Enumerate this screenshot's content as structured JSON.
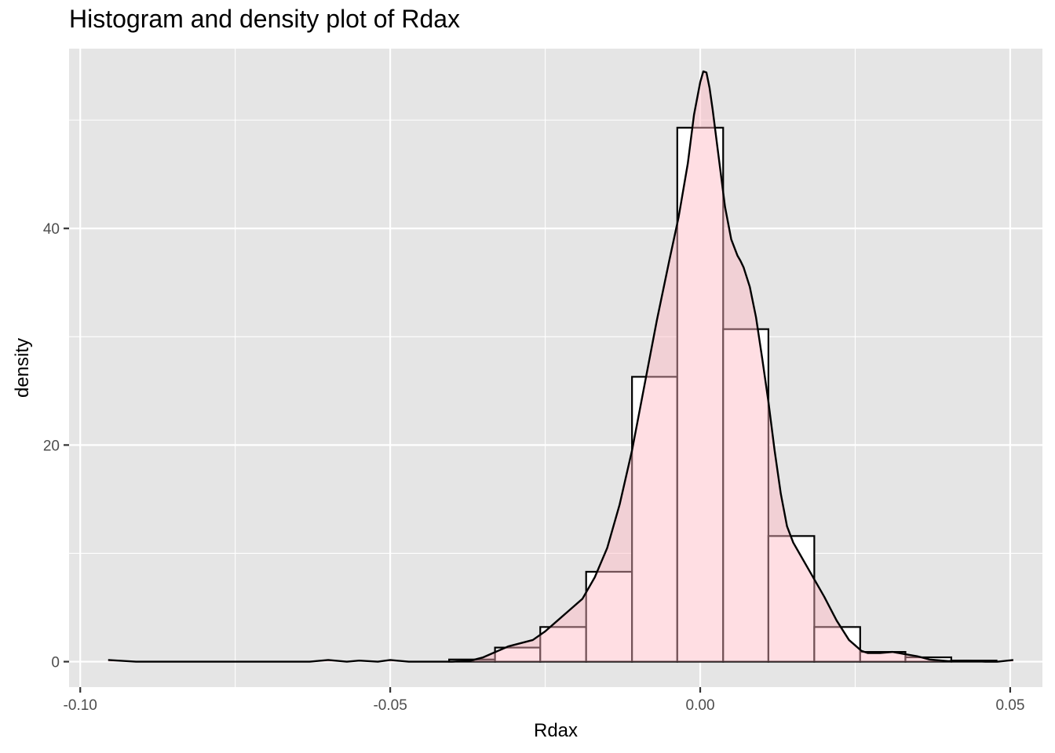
{
  "chart_data": {
    "type": "histogram",
    "title": "Histogram and density plot of Rdax",
    "xlabel": "Rdax",
    "ylabel": "density",
    "xlim": [
      -0.1018,
      0.0552
    ],
    "ylim": [
      -2.35,
      56.6
    ],
    "x_ticks": [
      -0.1,
      -0.05,
      0.0,
      0.05
    ],
    "x_tick_labels": [
      "-0.10",
      "-0.05",
      "0.00",
      "0.05"
    ],
    "x_minor_ticks": [
      -0.075,
      -0.025,
      0.025
    ],
    "y_ticks": [
      0,
      20,
      40
    ],
    "y_tick_labels": [
      "0",
      "20",
      "40"
    ],
    "y_minor_ticks": [
      10,
      30,
      50
    ],
    "grid": true,
    "background": "#e5e5e5",
    "grid_color": "#ffffff",
    "bar_fill": "#ffffff",
    "bar_stroke": "#000000",
    "density_fill": "#ffb6c1",
    "density_fill_opacity": 0.45,
    "density_stroke": "#000000",
    "histogram": {
      "bin_edges": [
        -0.0405,
        -0.0331,
        -0.0258,
        -0.0184,
        -0.011,
        -0.0037,
        0.0037,
        0.011,
        0.0184,
        0.0258,
        0.0331,
        0.0405,
        0.0478
      ],
      "density": [
        0.2,
        1.3,
        3.2,
        8.3,
        26.3,
        49.3,
        30.7,
        11.6,
        3.2,
        0.9,
        0.4,
        0.1
      ]
    },
    "density_curve": {
      "x": [
        -0.0955,
        -0.091,
        -0.08,
        -0.07,
        -0.063,
        -0.06,
        -0.057,
        -0.055,
        -0.052,
        -0.05,
        -0.047,
        -0.045,
        -0.04,
        -0.037,
        -0.035,
        -0.033,
        -0.031,
        -0.029,
        -0.027,
        -0.025,
        -0.023,
        -0.021,
        -0.019,
        -0.017,
        -0.015,
        -0.013,
        -0.011,
        -0.009,
        -0.007,
        -0.005,
        -0.0035,
        -0.002,
        -0.001,
        0.0,
        0.0005,
        0.001,
        0.0015,
        0.002,
        0.003,
        0.004,
        0.005,
        0.006,
        0.0065,
        0.007,
        0.008,
        0.009,
        0.01,
        0.011,
        0.012,
        0.013,
        0.014,
        0.015,
        0.016,
        0.018,
        0.02,
        0.022,
        0.024,
        0.025,
        0.026,
        0.027,
        0.029,
        0.031,
        0.033,
        0.035,
        0.037,
        0.04,
        0.043,
        0.046,
        0.048,
        0.0505
      ],
      "y": [
        0.15,
        0.0,
        0.0,
        0.0,
        0.0,
        0.15,
        0.0,
        0.1,
        0.0,
        0.15,
        0.0,
        0.0,
        0.0,
        0.1,
        0.4,
        0.9,
        1.4,
        1.7,
        2.0,
        2.8,
        3.8,
        4.8,
        5.8,
        7.8,
        10.5,
        14.5,
        19.5,
        25.5,
        31.5,
        37.0,
        41.0,
        46.0,
        50.5,
        53.5,
        54.5,
        54.4,
        53.0,
        51.0,
        46.5,
        42.0,
        39.0,
        37.5,
        37.0,
        36.4,
        34.6,
        31.8,
        28.0,
        24.0,
        19.5,
        15.5,
        12.5,
        11.0,
        10.0,
        8.0,
        6.0,
        3.8,
        2.0,
        1.5,
        1.0,
        0.8,
        0.8,
        0.9,
        0.7,
        0.5,
        0.2,
        0.05,
        0.1,
        0.0,
        0.0,
        0.15
      ]
    }
  }
}
